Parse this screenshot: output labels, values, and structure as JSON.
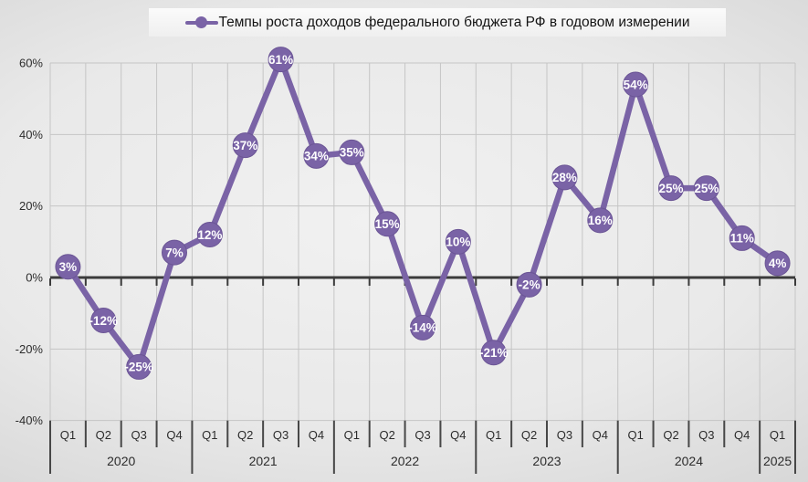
{
  "chart_data": {
    "type": "line",
    "title": "Темпы роста доходов федерального бюджета РФ в годовом измерении",
    "ylim": [
      -40,
      60
    ],
    "y_ticks": [
      {
        "label": "60%",
        "v": 60
      },
      {
        "label": "40%",
        "v": 40
      },
      {
        "label": "20%",
        "v": 20
      },
      {
        "label": "0%",
        "v": 0
      },
      {
        "label": "-20%",
        "v": -20
      },
      {
        "label": "-40%",
        "v": -40
      }
    ],
    "x_groups": [
      {
        "year": "2020",
        "quarters": [
          "Q1",
          "Q2",
          "Q3",
          "Q4"
        ]
      },
      {
        "year": "2021",
        "quarters": [
          "Q1",
          "Q2",
          "Q3",
          "Q4"
        ]
      },
      {
        "year": "2022",
        "quarters": [
          "Q1",
          "Q2",
          "Q3",
          "Q4"
        ]
      },
      {
        "year": "2023",
        "quarters": [
          "Q1",
          "Q2",
          "Q3",
          "Q4"
        ]
      },
      {
        "year": "2024",
        "quarters": [
          "Q1",
          "Q2",
          "Q3",
          "Q4"
        ]
      },
      {
        "year": "2025",
        "quarters": [
          "Q1"
        ]
      }
    ],
    "values": [
      3,
      -12,
      -25,
      7,
      12,
      37,
      61,
      34,
      35,
      15,
      -14,
      10,
      -21,
      -2,
      28,
      16,
      54,
      25,
      25,
      11,
      4
    ],
    "point_labels": [
      "3%",
      "-12%",
      "-25%",
      "7%",
      "12%",
      "37%",
      "61%",
      "34%",
      "35%",
      "15%",
      "-14%",
      "10%",
      "-21%",
      "-2%",
      "28%",
      "16%",
      "54%",
      "25%",
      "25%",
      "11%",
      "4%"
    ],
    "series_color": "#7a63a6",
    "marker_stroke_color": "#6b5595",
    "zero_line_color": "#3b3b3b",
    "gridline_color": "#c5c5c5",
    "separator_color": "#474747",
    "grid": true,
    "legend_position": "top"
  }
}
